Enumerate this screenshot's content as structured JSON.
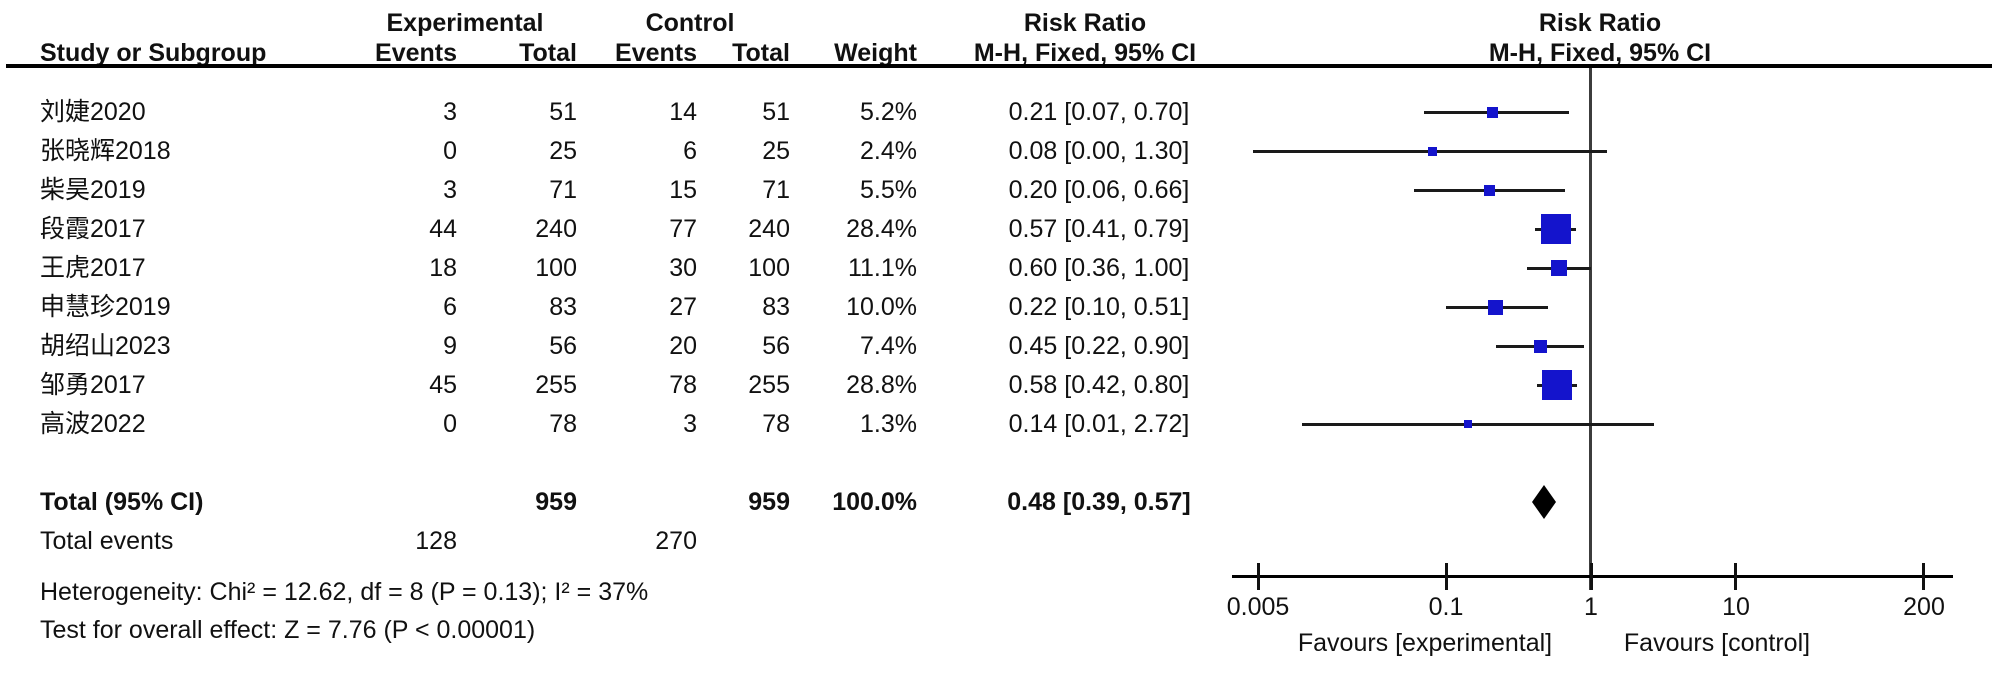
{
  "columns": {
    "group_experimental": "Experimental",
    "group_control": "Control",
    "risk_ratio_left": "Risk Ratio",
    "risk_ratio_right": "Risk Ratio",
    "study": "Study or Subgroup",
    "events": "Events",
    "total": "Total",
    "events2": "Events",
    "total2": "Total",
    "weight": "Weight",
    "mh_fixed_left": "M-H, Fixed, 95% CI",
    "mh_fixed_right": "M-H, Fixed, 95% CI"
  },
  "chart_data": {
    "type": "forest",
    "effect_measure": "Risk Ratio",
    "method": "M-H, Fixed, 95% CI",
    "scale": "log",
    "axis": {
      "min": 0.005,
      "max": 200,
      "tick_values": [
        0.005,
        0.1,
        1,
        10,
        200
      ],
      "tick_labels": [
        "0.005",
        "0.1",
        "1",
        "10",
        "200"
      ]
    },
    "favours_left": "Favours [experimental]",
    "favours_right": "Favours [control]",
    "studies": [
      {
        "name": "刘婕2020",
        "exp_events": "3",
        "exp_total": "51",
        "ctrl_events": "14",
        "ctrl_total": "51",
        "weight": "5.2%",
        "weight_value": 5.2,
        "rr": 0.21,
        "ci_low": 0.07,
        "ci_high": 0.7,
        "label": "0.21 [0.07, 0.70]"
      },
      {
        "name": "张晓辉2018",
        "exp_events": "0",
        "exp_total": "25",
        "ctrl_events": "6",
        "ctrl_total": "25",
        "weight": "2.4%",
        "weight_value": 2.4,
        "rr": 0.08,
        "ci_low": 0.0,
        "ci_high": 1.3,
        "label": "0.08 [0.00, 1.30]"
      },
      {
        "name": "柴昊2019",
        "exp_events": "3",
        "exp_total": "71",
        "ctrl_events": "15",
        "ctrl_total": "71",
        "weight": "5.5%",
        "weight_value": 5.5,
        "rr": 0.2,
        "ci_low": 0.06,
        "ci_high": 0.66,
        "label": "0.20 [0.06, 0.66]"
      },
      {
        "name": "段霞2017",
        "exp_events": "44",
        "exp_total": "240",
        "ctrl_events": "77",
        "ctrl_total": "240",
        "weight": "28.4%",
        "weight_value": 28.4,
        "rr": 0.57,
        "ci_low": 0.41,
        "ci_high": 0.79,
        "label": "0.57 [0.41, 0.79]"
      },
      {
        "name": "王虎2017",
        "exp_events": "18",
        "exp_total": "100",
        "ctrl_events": "30",
        "ctrl_total": "100",
        "weight": "11.1%",
        "weight_value": 11.1,
        "rr": 0.6,
        "ci_low": 0.36,
        "ci_high": 1.0,
        "label": "0.60 [0.36, 1.00]"
      },
      {
        "name": "申慧珍2019",
        "exp_events": "6",
        "exp_total": "83",
        "ctrl_events": "27",
        "ctrl_total": "83",
        "weight": "10.0%",
        "weight_value": 10.0,
        "rr": 0.22,
        "ci_low": 0.1,
        "ci_high": 0.51,
        "label": "0.22 [0.10, 0.51]"
      },
      {
        "name": "胡绍山2023",
        "exp_events": "9",
        "exp_total": "56",
        "ctrl_events": "20",
        "ctrl_total": "56",
        "weight": "7.4%",
        "weight_value": 7.4,
        "rr": 0.45,
        "ci_low": 0.22,
        "ci_high": 0.9,
        "label": "0.45 [0.22, 0.90]"
      },
      {
        "name": "邹勇2017",
        "exp_events": "45",
        "exp_total": "255",
        "ctrl_events": "78",
        "ctrl_total": "255",
        "weight": "28.8%",
        "weight_value": 28.8,
        "rr": 0.58,
        "ci_low": 0.42,
        "ci_high": 0.8,
        "label": "0.58 [0.42, 0.80]"
      },
      {
        "name": "高波2022",
        "exp_events": "0",
        "exp_total": "78",
        "ctrl_events": "3",
        "ctrl_total": "78",
        "weight": "1.3%",
        "weight_value": 1.3,
        "rr": 0.14,
        "ci_low": 0.01,
        "ci_high": 2.72,
        "label": "0.14 [0.01, 2.72]"
      }
    ],
    "total": {
      "name": "Total (95% CI)",
      "exp_total": "959",
      "ctrl_total": "959",
      "weight": "100.0%",
      "rr": 0.48,
      "ci_low": 0.39,
      "ci_high": 0.57,
      "label": "0.48 [0.39, 0.57]"
    },
    "total_events": {
      "label": "Total events",
      "exp": "128",
      "ctrl": "270"
    },
    "heterogeneity": "Heterogeneity: Chi² = 12.62, df = 8 (P = 0.13); I² = 37%",
    "overall_effect": "Test for overall effect: Z = 7.76 (P < 0.00001)"
  },
  "colors": {
    "square": "#1414cc",
    "diamond": "#000000",
    "ci_line": "#1a1a1a",
    "axis": "#111111",
    "null_line": "#3c3c3c"
  }
}
